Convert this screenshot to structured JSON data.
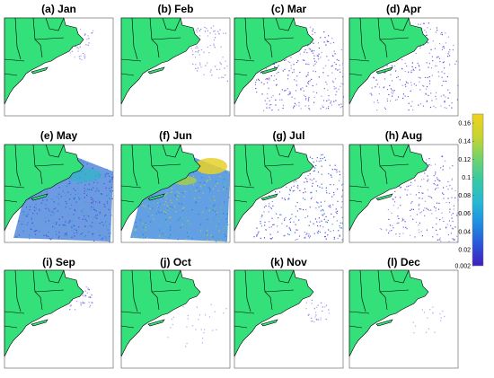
{
  "figure": {
    "panels": [
      {
        "label": "(a) Jan",
        "month": "Jan"
      },
      {
        "label": "(b) Feb",
        "month": "Feb"
      },
      {
        "label": "(c) Mar",
        "month": "Mar"
      },
      {
        "label": "(d) Apr",
        "month": "Apr"
      },
      {
        "label": "(e) May",
        "month": "May"
      },
      {
        "label": "(f) Jun",
        "month": "Jun"
      },
      {
        "label": "(g) Jul",
        "month": "Jul"
      },
      {
        "label": "(h) Aug",
        "month": "Aug"
      },
      {
        "label": "(i) Sep",
        "month": "Sep"
      },
      {
        "label": "(j) Oct",
        "month": "Oct"
      },
      {
        "label": "(k) Nov",
        "month": "Nov"
      },
      {
        "label": "(l) Dec",
        "month": "Dec"
      }
    ]
  },
  "colorbar": {
    "min": 0.002,
    "max": 0.17,
    "tick_labels": [
      "0.16",
      "0.14",
      "0.12",
      "0.1",
      "0.08",
      "0.06",
      "0.04",
      "0.02",
      "0.002"
    ],
    "tick_values": [
      0.16,
      0.14,
      0.12,
      0.1,
      0.08,
      0.06,
      0.04,
      0.02,
      0.002
    ],
    "colors": [
      "#3f1fbf",
      "#2a55d8",
      "#1e8fe0",
      "#27b9d3",
      "#35c9a5",
      "#6ed26f",
      "#c3d433",
      "#f2d21c"
    ]
  },
  "colors": {
    "land": "#33e07a",
    "border": "#000000"
  }
}
